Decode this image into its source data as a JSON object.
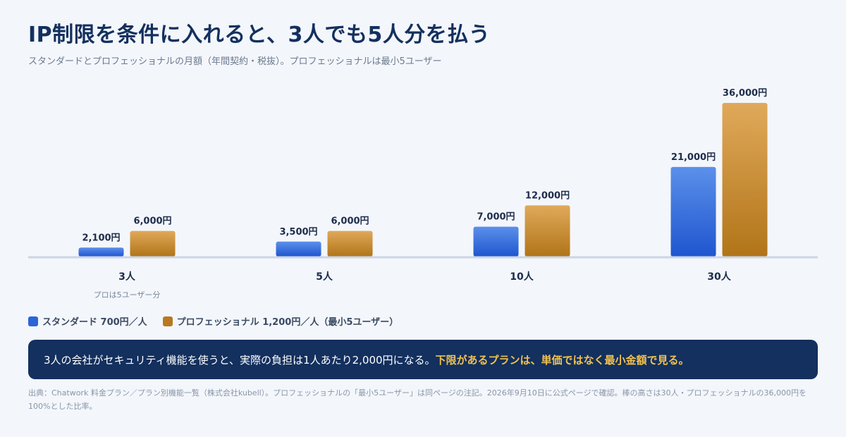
{
  "header": {
    "title": "IP制限を条件に入れると、3人でも5人分を払う",
    "subtitle": "スタンダードとプロフェッショナルの月額（年間契約・税抜）。プロフェッショナルは最小5ユーザー"
  },
  "chart_data": {
    "type": "bar",
    "categories": [
      "3人",
      "5人",
      "10人",
      "30人"
    ],
    "category_notes": [
      "プロは5ユーザー分",
      "",
      "",
      ""
    ],
    "series": [
      {
        "name": "スタンダード 700円／人",
        "values": [
          2100,
          3500,
          7000,
          21000
        ],
        "labels": [
          "2,100円",
          "3,500円",
          "7,000円",
          "21,000円"
        ],
        "color": "#2b63d9"
      },
      {
        "name": "プロフェッショナル 1,200円／人（最小5ユーザー）",
        "values": [
          6000,
          6000,
          12000,
          36000
        ],
        "labels": [
          "6,000円",
          "6,000円",
          "12,000円",
          "36,000円"
        ],
        "color": "#b8791f"
      }
    ],
    "ylim": [
      0,
      36000
    ],
    "grid": false,
    "legend_position": "bottom-left"
  },
  "callout": {
    "text": "3人の会社がセキュリティ機能を使うと、実際の負担は1人あたり2,000円になる。",
    "highlight": "下限があるプランは、単価ではなく最小金額で見る。"
  },
  "source": "出典：Chatwork 料金プラン／プラン別機能一覧（株式会社kubell）。プロフェッショナルの「最小5ユーザー」は同ページの注記。2026年9月10日に公式ページで確認。棒の高さは30人・プロフェッショナルの36,000円を100%とした比率。"
}
